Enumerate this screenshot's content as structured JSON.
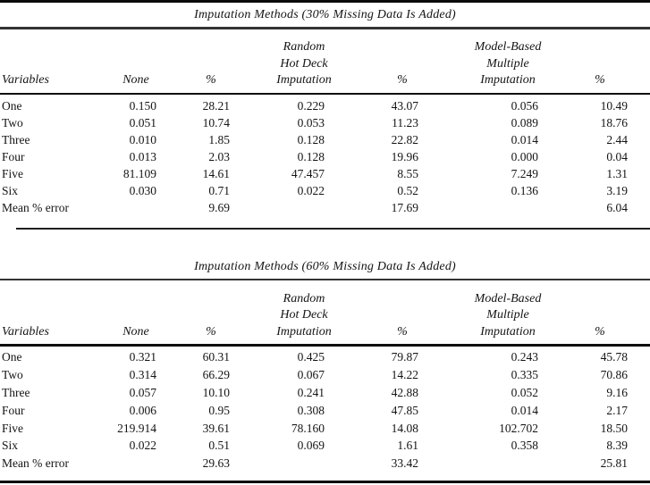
{
  "page": {
    "background": "#ffffff",
    "text_color": "#141414",
    "rule_color": "#0a0a0a"
  },
  "tables": [
    {
      "title": "Imputation Methods (30% Missing Data Is Added)",
      "columns": [
        "Variables",
        "None",
        "%",
        "Random\nHot Deck\nImputation",
        "%",
        "Model-Based\nMultiple\nImputation",
        "%"
      ],
      "rows": [
        [
          "One",
          "0.150",
          "28.21",
          "0.229",
          "43.07",
          "0.056",
          "10.49"
        ],
        [
          "Two",
          "0.051",
          "10.74",
          "0.053",
          "11.23",
          "0.089",
          "18.76"
        ],
        [
          "Three",
          "0.010",
          "1.85",
          "0.128",
          "22.82",
          "0.014",
          "2.44"
        ],
        [
          "Four",
          "0.013",
          "2.03",
          "0.128",
          "19.96",
          "0.000",
          "0.04"
        ],
        [
          "Five",
          "81.109",
          "14.61",
          "47.457",
          "8.55",
          "7.249",
          "1.31"
        ],
        [
          "Six",
          "0.030",
          "0.71",
          "0.022",
          "0.52",
          "0.136",
          "3.19"
        ],
        [
          "Mean % error",
          "",
          "9.69",
          "",
          "17.69",
          "",
          "6.04"
        ]
      ]
    },
    {
      "title": "Imputation Methods (60% Missing Data Is Added)",
      "columns": [
        "Variables",
        "None",
        "%",
        "Random\nHot Deck\nImputation",
        "%",
        "Model-Based\nMultiple\nImputation",
        "%"
      ],
      "rows": [
        [
          "One",
          "0.321",
          "60.31",
          "0.425",
          "79.87",
          "0.243",
          "45.78"
        ],
        [
          "Two",
          "0.314",
          "66.29",
          "0.067",
          "14.22",
          "0.335",
          "70.86"
        ],
        [
          "Three",
          "0.057",
          "10.10",
          "0.241",
          "42.88",
          "0.052",
          "9.16"
        ],
        [
          "Four",
          "0.006",
          "0.95",
          "0.308",
          "47.85",
          "0.014",
          "2.17"
        ],
        [
          "Five",
          "219.914",
          "39.61",
          "78.160",
          "14.08",
          "102.702",
          "18.50"
        ],
        [
          "Six",
          "0.022",
          "0.51",
          "0.069",
          "1.61",
          "0.358",
          "8.39"
        ],
        [
          "Mean % error",
          "",
          "29.63",
          "",
          "33.42",
          "",
          "25.81"
        ]
      ]
    }
  ]
}
